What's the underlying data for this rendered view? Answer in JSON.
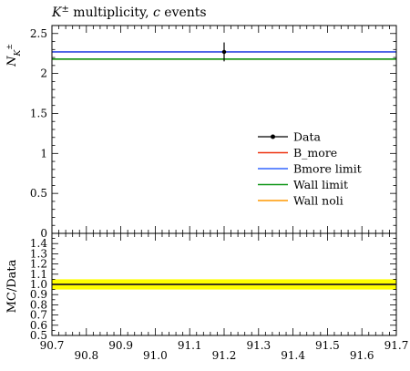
{
  "chart_data": {
    "type": "line",
    "title_prefix": "K",
    "title_sup": "±",
    "title_middle": " multiplicity, ",
    "title_italic": "c",
    "title_suffix": " events",
    "ylabel_main": "N",
    "ylabel_sub": "K",
    "ylabel_sup": "±",
    "ylabel_ratio": "MC/Data",
    "xlim": [
      90.7,
      91.7
    ],
    "ylim_main": [
      0,
      2.6
    ],
    "ylim_ratio": [
      0.5,
      1.5
    ],
    "x_ticks": [
      "90.7",
      "90.8",
      "90.9",
      "91.0",
      "91.1",
      "91.2",
      "91.3",
      "91.4",
      "91.5",
      "91.6",
      "91.7"
    ],
    "x_tick_values": [
      90.7,
      90.8,
      90.9,
      91.0,
      91.1,
      91.2,
      91.3,
      91.4,
      91.5,
      91.6,
      91.7
    ],
    "y_ticks_main": [
      "0",
      "0.5",
      "1",
      "1.5",
      "2",
      "2.5"
    ],
    "y_tick_values_main": [
      0,
      0.5,
      1,
      1.5,
      2,
      2.5
    ],
    "y_ticks_ratio": [
      "0.5",
      "0.6",
      "0.7",
      "0.8",
      "0.9",
      "1.0",
      "1.1",
      "1.2",
      "1.3",
      "1.4"
    ],
    "y_tick_values_ratio": [
      0.5,
      0.6,
      0.7,
      0.8,
      0.9,
      1.0,
      1.1,
      1.2,
      1.3,
      1.4
    ],
    "data_point": {
      "name": "Data",
      "x": 91.2,
      "y": 2.27,
      "yerr": 0.05,
      "xerr": 0.0,
      "color": "#000000"
    },
    "series": [
      {
        "name": "B_more",
        "y": 2.27,
        "color": "#ee3311"
      },
      {
        "name": "Bmore limit",
        "y": 2.27,
        "color": "#3366ff"
      },
      {
        "name": "Wall limit",
        "y": 2.18,
        "color": "#109618"
      },
      {
        "name": "Wall noli",
        "y": 2.18,
        "color": "#ff9900"
      }
    ],
    "ratio_band": {
      "low": 0.95,
      "high": 1.05,
      "color": "#ffff00"
    },
    "ratio_line": 1.0,
    "legend_placement": "right"
  }
}
